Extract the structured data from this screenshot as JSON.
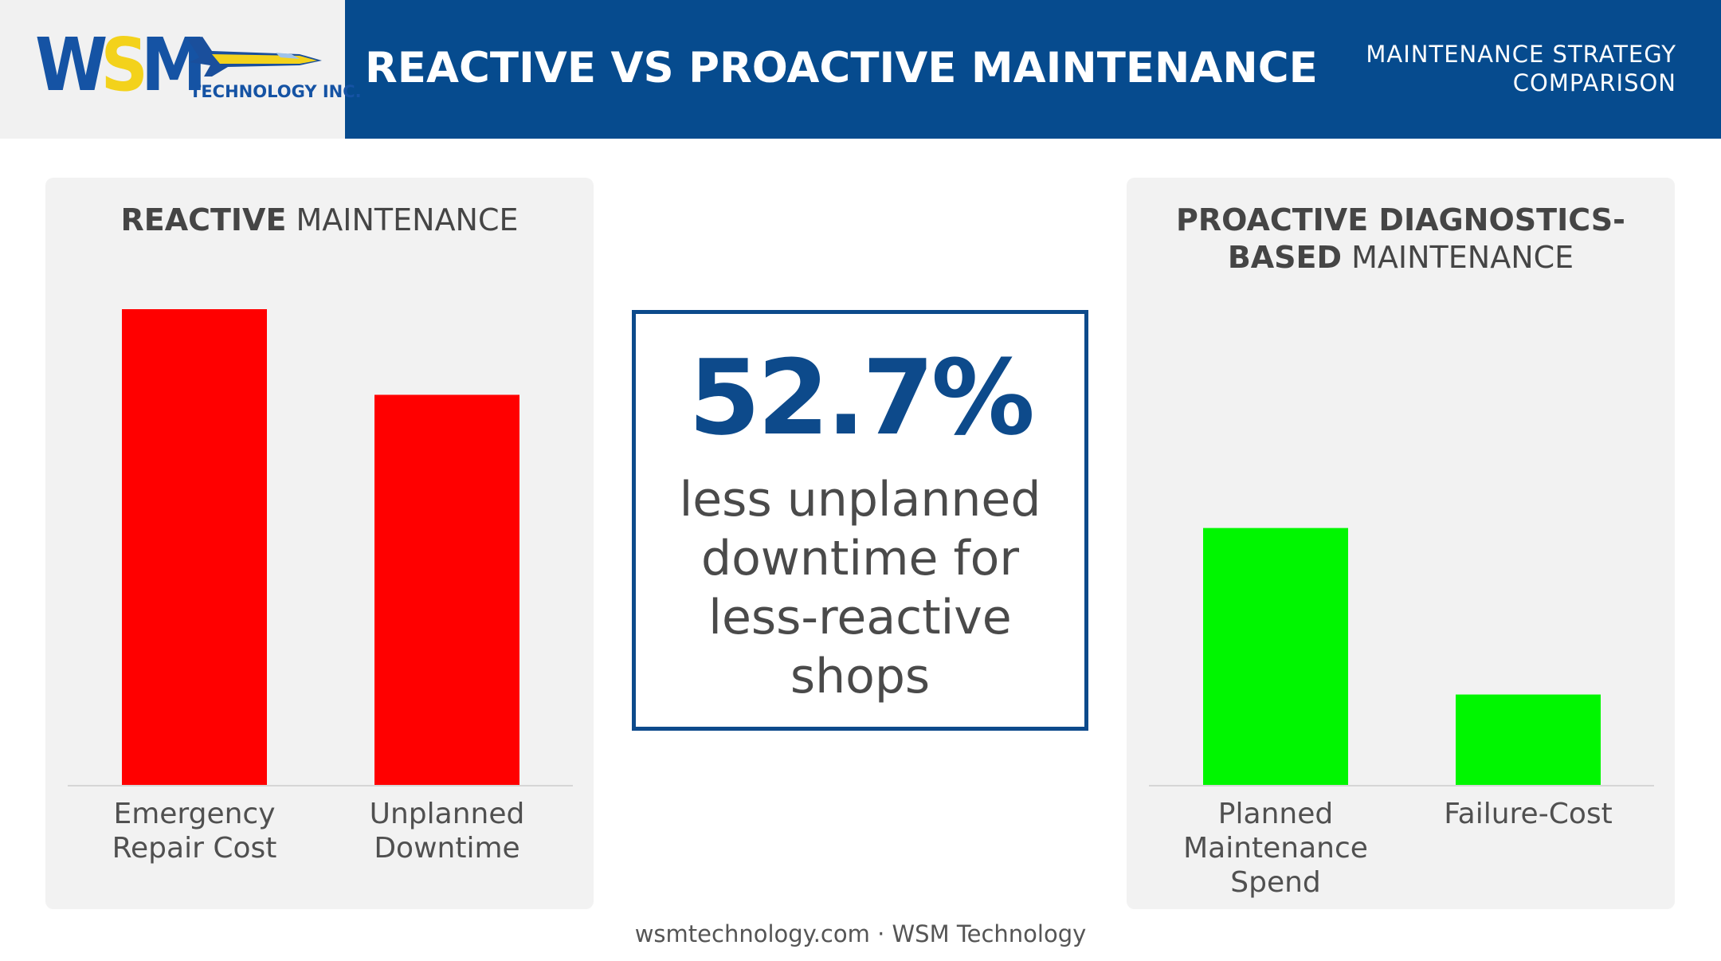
{
  "header": {
    "logo_mark": "WSM",
    "logo_subtitle": "TECHNOLOGY INC.",
    "title": "REACTIVE VS PROACTIVE MAINTENANCE",
    "subtitle_line1": "MAINTENANCE STRATEGY",
    "subtitle_line2": "COMPARISON"
  },
  "stat": {
    "value": "52.7%",
    "text": "less unplanned downtime for less-reactive shops"
  },
  "footer": {
    "text": "wsmtechnology.com · WSM Technology"
  },
  "colors": {
    "header_bg": "#064b8e",
    "reactive_bar": "#ff0000",
    "proactive_bar": "#00f600",
    "stat_accent": "#0d4a8b"
  },
  "chart_data": [
    {
      "type": "bar",
      "title_bold": "REACTIVE",
      "title_rest": " MAINTENANCE",
      "categories": [
        [
          "Emergency",
          "Repair Cost"
        ],
        [
          "Unplanned",
          "Downtime"
        ]
      ],
      "values": [
        100,
        82
      ],
      "ylim": [
        0,
        100
      ],
      "color": "#ff0000"
    },
    {
      "type": "bar",
      "title_bold": "PROACTIVE DIAGNOSTICS-",
      "title_bold_2": "BASED",
      "title_rest": " MAINTENANCE",
      "categories": [
        [
          "Planned",
          "Maintenance",
          "Spend"
        ],
        [
          "Failure-Cost"
        ]
      ],
      "values": [
        54,
        19
      ],
      "ylim": [
        0,
        100
      ],
      "color": "#00f600"
    }
  ]
}
